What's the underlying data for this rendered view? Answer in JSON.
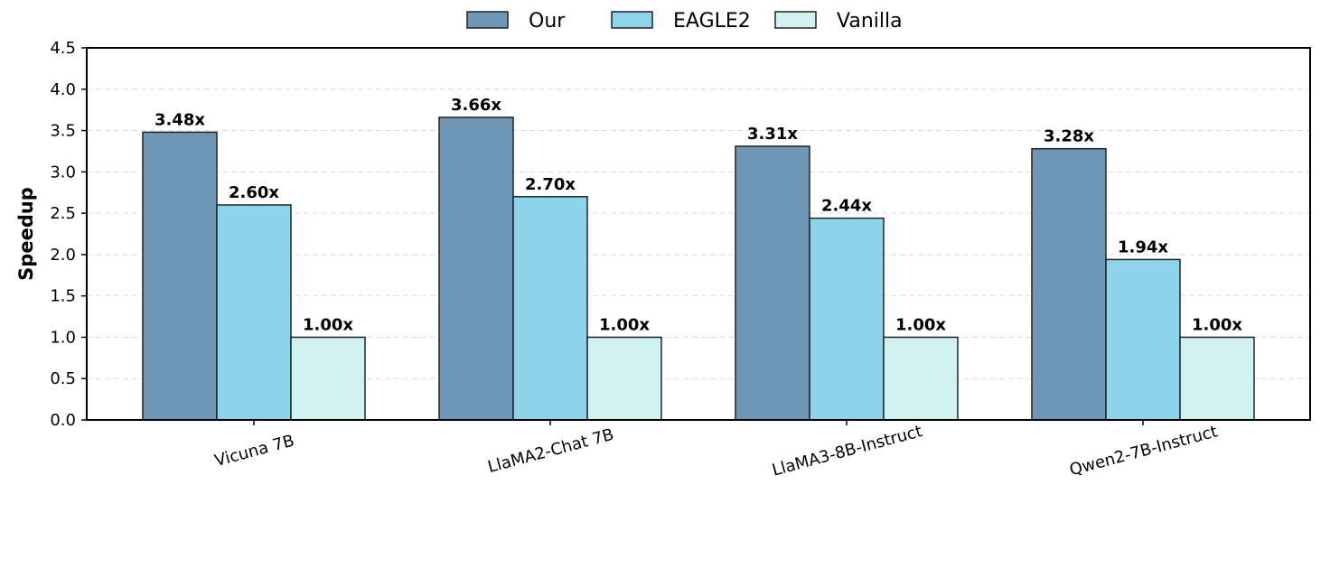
{
  "chart_data": {
    "type": "bar",
    "title": "",
    "xlabel": "",
    "ylabel": "Speedup",
    "ylim": [
      0,
      4.5
    ],
    "yticks": [
      "0.0",
      "0.5",
      "1.0",
      "1.5",
      "2.0",
      "2.5",
      "3.0",
      "3.5",
      "4.0",
      "4.5"
    ],
    "grid": "horizontal dashed",
    "legend_position": "top-center",
    "categories": [
      "Vicuna 7B",
      "LlaMA2-Chat 7B",
      "LlaMA3-8B-Instruct",
      "Qwen2-7B-Instruct"
    ],
    "series": [
      {
        "name": "Our",
        "color": "#7096b6",
        "values": [
          3.48,
          3.66,
          3.31,
          3.28
        ],
        "labels": [
          "3.48x",
          "3.66x",
          "3.31x",
          "3.28x"
        ]
      },
      {
        "name": "EAGLE2",
        "color": "#8dd4ea",
        "values": [
          2.6,
          2.7,
          2.44,
          1.94
        ],
        "labels": [
          "2.60x",
          "2.70x",
          "2.44x",
          "1.94x"
        ]
      },
      {
        "name": "Vanilla",
        "color": "#d0f3f2",
        "values": [
          1.0,
          1.0,
          1.0,
          1.0
        ],
        "labels": [
          "1.00x",
          "1.00x",
          "1.00x",
          "1.00x"
        ]
      }
    ]
  }
}
